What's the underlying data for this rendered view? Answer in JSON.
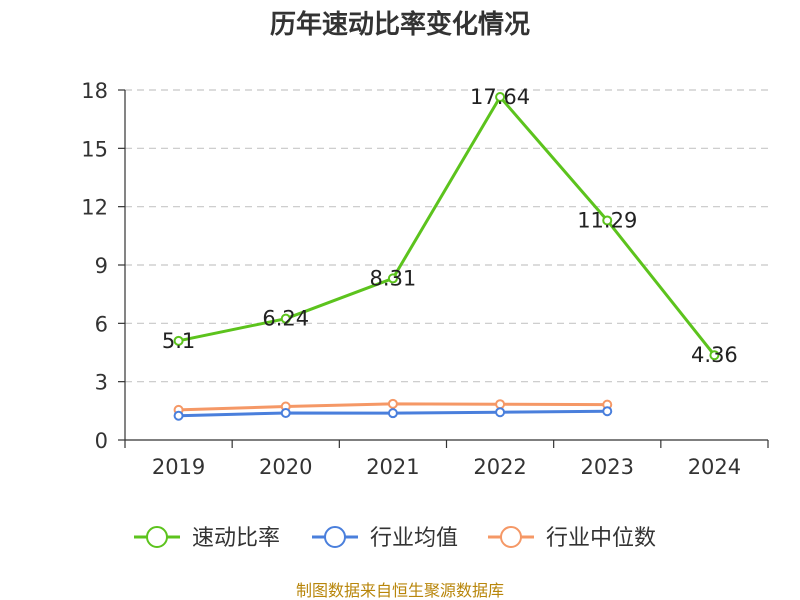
{
  "chart_data": {
    "type": "line",
    "title": "历年速动比率变化情况",
    "categories": [
      "2019",
      "2020",
      "2021",
      "2022",
      "2023",
      "2024"
    ],
    "yticks": [
      "0",
      "3",
      "6",
      "9",
      "12",
      "15",
      "18"
    ],
    "ylim": [
      0,
      18
    ],
    "grid": true,
    "legend_position": "bottom",
    "series": [
      {
        "name": "速动比率",
        "color": "#5cc31d",
        "values": [
          5.1,
          6.24,
          8.31,
          17.64,
          11.29,
          4.36
        ],
        "labels": [
          "5.1",
          "6.24",
          "8.31",
          "17.64",
          "11.29",
          "4.36"
        ],
        "show_labels": true
      },
      {
        "name": "行业均值",
        "color": "#4a7fdc",
        "values": [
          1.25,
          1.39,
          1.38,
          1.43,
          1.48,
          null
        ],
        "show_labels": false
      },
      {
        "name": "行业中位数",
        "color": "#f59866",
        "values": [
          1.55,
          1.72,
          1.86,
          1.84,
          1.82,
          null
        ],
        "show_labels": false
      }
    ]
  },
  "source": "制图数据来自恒生聚源数据库"
}
